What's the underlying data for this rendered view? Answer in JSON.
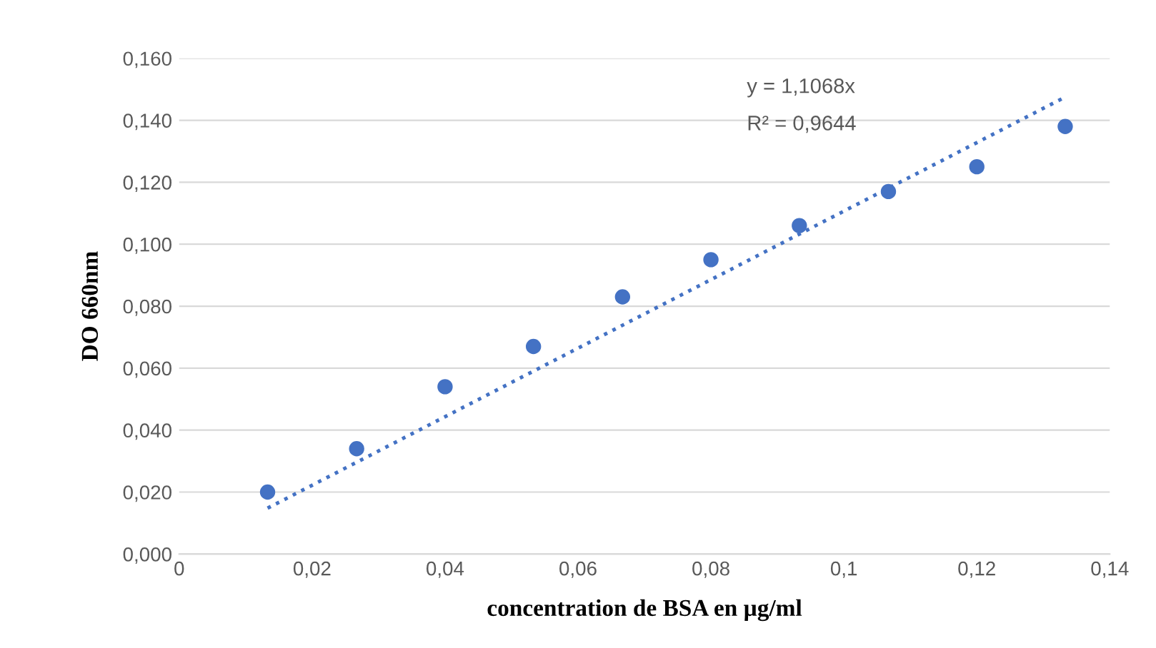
{
  "chart_data": {
    "type": "scatter",
    "xlabel": "concentration de BSA en µg/ml",
    "ylabel": "DO 660nm",
    "series": [
      {
        "color": "#4472c4",
        "marker": "circle",
        "x": [
          0.0133,
          0.0267,
          0.04,
          0.0533,
          0.0667,
          0.08,
          0.0933,
          0.1067,
          0.12,
          0.1333
        ],
        "values": [
          0.02,
          0.034,
          0.054,
          0.067,
          0.083,
          0.095,
          0.106,
          0.117,
          0.125,
          0.138
        ]
      },
      {
        "type": "line",
        "color": "#4472c4",
        "line_style": "dotted",
        "x": [
          0.0133,
          0.1333
        ],
        "values": [
          0.0148,
          0.1475
        ]
      }
    ],
    "annotations": [
      "y = 1,1068x",
      "R² = 0,9644"
    ],
    "xlim": [
      0,
      0.14
    ],
    "xticks": [
      {
        "value": 0,
        "label": "0"
      },
      {
        "value": 0.02,
        "label": "0,02"
      },
      {
        "value": 0.04,
        "label": "0,04"
      },
      {
        "value": 0.06,
        "label": "0,06"
      },
      {
        "value": 0.08,
        "label": "0,08"
      },
      {
        "value": 0.1,
        "label": "0,1"
      },
      {
        "value": 0.12,
        "label": "0,12"
      },
      {
        "value": 0.14,
        "label": "0,14"
      }
    ],
    "ylim": [
      0,
      0.16
    ],
    "yticks": [
      {
        "value": 0,
        "label": "0,000"
      },
      {
        "value": 0.02,
        "label": "0,020"
      },
      {
        "value": 0.04,
        "label": "0,040"
      },
      {
        "value": 0.06,
        "label": "0,060"
      },
      {
        "value": 0.08,
        "label": "0,080"
      },
      {
        "value": 0.1,
        "label": "0,100"
      },
      {
        "value": 0.12,
        "label": "0,120"
      },
      {
        "value": 0.14,
        "label": "0,140"
      },
      {
        "value": 0.16,
        "label": "0,160"
      }
    ],
    "grid": "y"
  }
}
